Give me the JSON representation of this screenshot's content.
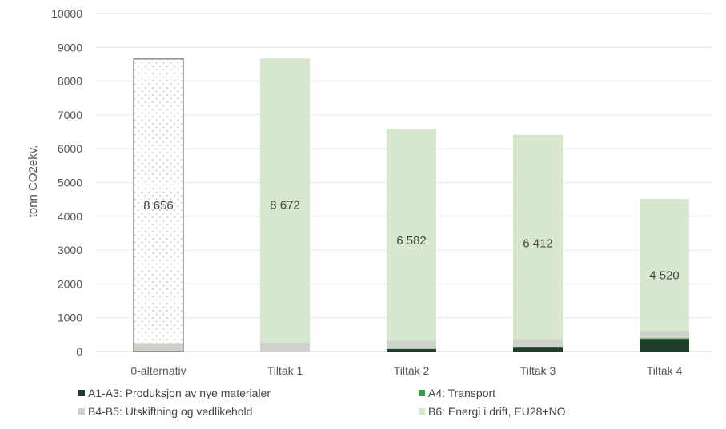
{
  "chart_data": {
    "type": "bar",
    "stacked": true,
    "title": "",
    "xlabel": "",
    "ylabel": "tonn CO2ekv.",
    "ylim": [
      0,
      10000
    ],
    "yticks": [
      0,
      1000,
      2000,
      3000,
      4000,
      5000,
      6000,
      7000,
      8000,
      9000,
      10000
    ],
    "grid": true,
    "legend_position": "bottom",
    "categories": [
      "0-alternativ",
      "Tiltak 1",
      "Tiltak 2",
      "Tiltak 3",
      "Tiltak 4"
    ],
    "series": [
      {
        "name": "A1-A3: Produksjon av nye materialer",
        "color": "#1f3d2b",
        "values": [
          0,
          0,
          70,
          130,
          370
        ]
      },
      {
        "name": "A4: Transport",
        "color": "#3a9b48",
        "values": [
          0,
          0,
          10,
          15,
          25
        ]
      },
      {
        "name": "B4-B5: Utskiftning og vedlikehold",
        "color": "#cfd2ca",
        "values": [
          250,
          260,
          240,
          230,
          220
        ]
      },
      {
        "name": "B6: Energi i drift, EU28+NO",
        "color": "#d7e7cd",
        "values": [
          8406,
          8412,
          6262,
          6037,
          3905
        ]
      }
    ],
    "totals": [
      8656,
      8672,
      6582,
      6412,
      4520
    ],
    "total_labels": [
      "8 656",
      "8 672",
      "6 582",
      "6 412",
      "4 520"
    ],
    "baseline_style": "dotted-outline"
  }
}
